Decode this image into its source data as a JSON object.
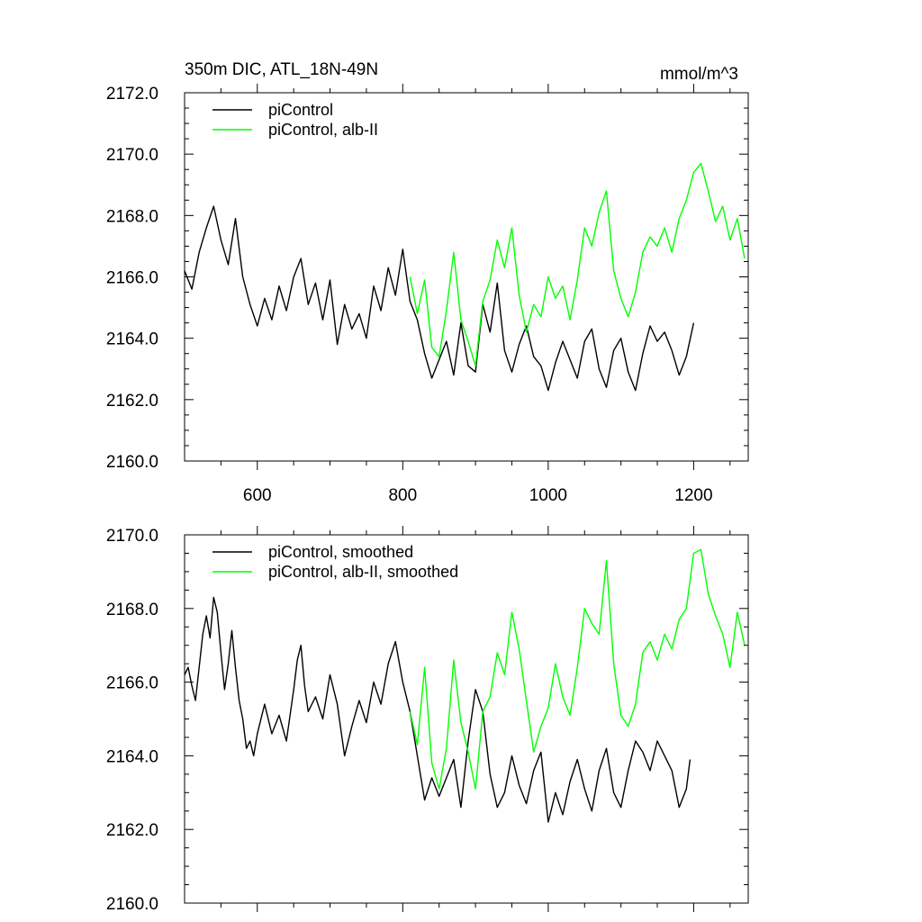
{
  "colors": {
    "control": "#000000",
    "albII": "#00ff00"
  },
  "chart_data": [
    {
      "type": "line",
      "title": "350m DIC, ATL_18N-49N",
      "units": "mmol/m^3",
      "xlim": [
        500,
        1275
      ],
      "ylim": [
        2160,
        2172
      ],
      "x_ticks": [
        600,
        800,
        1000,
        1200
      ],
      "x_tick_labels": [
        "600",
        "800",
        "1000",
        "1200"
      ],
      "y_ticks": [
        2160,
        2162,
        2164,
        2166,
        2168,
        2170,
        2172
      ],
      "y_tick_labels": [
        "2160.0",
        "2162.0",
        "2164.0",
        "2166.0",
        "2168.0",
        "2170.0",
        "2172.0"
      ],
      "legend_position": "top-left",
      "series": [
        {
          "name": "piControl",
          "color": "#000000",
          "x": [
            500,
            510,
            520,
            530,
            540,
            550,
            560,
            570,
            580,
            590,
            600,
            610,
            620,
            630,
            640,
            650,
            660,
            670,
            680,
            690,
            700,
            710,
            720,
            730,
            740,
            750,
            760,
            770,
            780,
            790,
            800,
            810,
            820,
            830,
            840,
            850,
            860,
            870,
            880,
            890,
            900,
            910,
            920,
            930,
            940,
            950,
            960,
            970,
            980,
            990,
            1000,
            1010,
            1020,
            1030,
            1040,
            1050,
            1060,
            1070,
            1080,
            1090,
            1100,
            1110,
            1120,
            1130,
            1140,
            1150,
            1160,
            1170,
            1180,
            1190,
            1200
          ],
          "y": [
            2166.2,
            2165.6,
            2166.8,
            2167.6,
            2168.3,
            2167.2,
            2166.4,
            2167.9,
            2166.0,
            2165.1,
            2164.4,
            2165.3,
            2164.6,
            2165.7,
            2164.9,
            2166.0,
            2166.6,
            2165.1,
            2165.8,
            2164.6,
            2165.9,
            2163.8,
            2165.1,
            2164.3,
            2164.8,
            2164.0,
            2165.7,
            2164.9,
            2166.3,
            2165.4,
            2166.9,
            2165.2,
            2164.6,
            2163.5,
            2162.7,
            2163.3,
            2163.9,
            2162.8,
            2164.5,
            2163.1,
            2162.9,
            2165.1,
            2164.2,
            2165.8,
            2163.6,
            2162.9,
            2163.8,
            2164.4,
            2163.4,
            2163.1,
            2162.3,
            2163.2,
            2163.9,
            2163.3,
            2162.7,
            2163.9,
            2164.3,
            2163.0,
            2162.4,
            2163.6,
            2164.0,
            2162.9,
            2162.3,
            2163.5,
            2164.4,
            2163.9,
            2164.2,
            2163.6,
            2162.8,
            2163.4,
            2164.5
          ]
        },
        {
          "name": "piControl, alb-II",
          "color": "#00ff00",
          "x": [
            810,
            820,
            830,
            840,
            850,
            860,
            870,
            880,
            890,
            900,
            910,
            920,
            930,
            940,
            950,
            960,
            970,
            980,
            990,
            1000,
            1010,
            1020,
            1030,
            1040,
            1050,
            1060,
            1070,
            1080,
            1090,
            1100,
            1110,
            1120,
            1130,
            1140,
            1150,
            1160,
            1170,
            1180,
            1190,
            1200,
            1210,
            1220,
            1230,
            1240,
            1250,
            1260,
            1270
          ],
          "y": [
            2166.0,
            2164.8,
            2165.9,
            2163.7,
            2163.4,
            2164.9,
            2166.8,
            2164.6,
            2163.9,
            2163.1,
            2165.2,
            2165.9,
            2167.2,
            2166.3,
            2167.6,
            2165.4,
            2164.2,
            2165.1,
            2164.7,
            2166.0,
            2165.3,
            2165.7,
            2164.6,
            2165.9,
            2167.6,
            2167.0,
            2168.1,
            2168.8,
            2166.2,
            2165.3,
            2164.7,
            2165.5,
            2166.8,
            2167.3,
            2167.0,
            2167.6,
            2166.8,
            2167.9,
            2168.5,
            2169.4,
            2169.7,
            2168.8,
            2167.8,
            2168.3,
            2167.2,
            2167.9,
            2166.6
          ]
        }
      ]
    },
    {
      "type": "line",
      "xlim": [
        500,
        1275
      ],
      "ylim": [
        2160,
        2170
      ],
      "x_ticks": [
        600,
        800,
        1000,
        1200
      ],
      "y_ticks": [
        2160,
        2162,
        2164,
        2166,
        2168,
        2170
      ],
      "y_tick_labels": [
        "2160.0",
        "2162.0",
        "2164.0",
        "2166.0",
        "2168.0",
        "2170.0"
      ],
      "legend_position": "top-left",
      "series": [
        {
          "name": "piControl, smoothed",
          "color": "#000000",
          "x": [
            500,
            505,
            510,
            515,
            520,
            525,
            530,
            535,
            540,
            545,
            550,
            555,
            560,
            565,
            570,
            575,
            580,
            585,
            590,
            595,
            600,
            610,
            620,
            630,
            640,
            650,
            655,
            660,
            665,
            670,
            680,
            690,
            700,
            710,
            720,
            730,
            740,
            750,
            760,
            770,
            780,
            790,
            800,
            810,
            820,
            830,
            840,
            850,
            860,
            870,
            880,
            890,
            900,
            910,
            920,
            930,
            940,
            950,
            960,
            970,
            980,
            990,
            1000,
            1010,
            1020,
            1030,
            1040,
            1050,
            1060,
            1070,
            1080,
            1090,
            1100,
            1110,
            1120,
            1130,
            1140,
            1150,
            1160,
            1170,
            1180,
            1190,
            1195
          ],
          "y": [
            2166.2,
            2166.4,
            2165.9,
            2165.5,
            2166.4,
            2167.3,
            2167.8,
            2167.2,
            2168.3,
            2167.9,
            2166.8,
            2165.8,
            2166.5,
            2167.4,
            2166.4,
            2165.5,
            2165.0,
            2164.2,
            2164.4,
            2164.0,
            2164.6,
            2165.4,
            2164.6,
            2165.1,
            2164.4,
            2165.8,
            2166.6,
            2167.0,
            2165.9,
            2165.2,
            2165.6,
            2165.0,
            2166.2,
            2165.4,
            2164.0,
            2164.8,
            2165.5,
            2164.9,
            2166.0,
            2165.4,
            2166.5,
            2167.1,
            2166.0,
            2165.2,
            2164.0,
            2162.8,
            2163.4,
            2162.9,
            2163.4,
            2163.9,
            2162.6,
            2164.4,
            2165.8,
            2165.2,
            2163.5,
            2162.6,
            2163.0,
            2164.0,
            2163.2,
            2162.7,
            2163.6,
            2164.1,
            2162.2,
            2163.0,
            2162.4,
            2163.3,
            2163.9,
            2163.1,
            2162.5,
            2163.6,
            2164.2,
            2163.0,
            2162.6,
            2163.6,
            2164.4,
            2164.1,
            2163.6,
            2164.4,
            2164.0,
            2163.6,
            2162.6,
            2163.1,
            2163.9
          ]
        },
        {
          "name": "piControl, alb-II, smoothed",
          "color": "#00ff00",
          "x": [
            810,
            820,
            830,
            840,
            850,
            860,
            870,
            880,
            890,
            900,
            910,
            920,
            930,
            940,
            950,
            960,
            970,
            980,
            990,
            1000,
            1010,
            1020,
            1030,
            1040,
            1050,
            1060,
            1070,
            1080,
            1090,
            1100,
            1110,
            1120,
            1130,
            1140,
            1150,
            1160,
            1170,
            1180,
            1190,
            1200,
            1210,
            1220,
            1230,
            1240,
            1250,
            1260,
            1270
          ],
          "y": [
            2165.2,
            2164.3,
            2166.4,
            2163.8,
            2163.1,
            2164.2,
            2166.6,
            2164.9,
            2164.1,
            2163.1,
            2165.2,
            2165.6,
            2166.8,
            2166.2,
            2167.9,
            2166.9,
            2165.5,
            2164.1,
            2164.8,
            2165.3,
            2166.5,
            2165.6,
            2165.1,
            2166.4,
            2168.0,
            2167.6,
            2167.3,
            2169.3,
            2166.5,
            2165.1,
            2164.8,
            2165.4,
            2166.8,
            2167.1,
            2166.6,
            2167.3,
            2166.9,
            2167.7,
            2168.0,
            2169.5,
            2169.6,
            2168.4,
            2167.8,
            2167.3,
            2166.4,
            2167.9,
            2167.0
          ]
        }
      ]
    }
  ]
}
